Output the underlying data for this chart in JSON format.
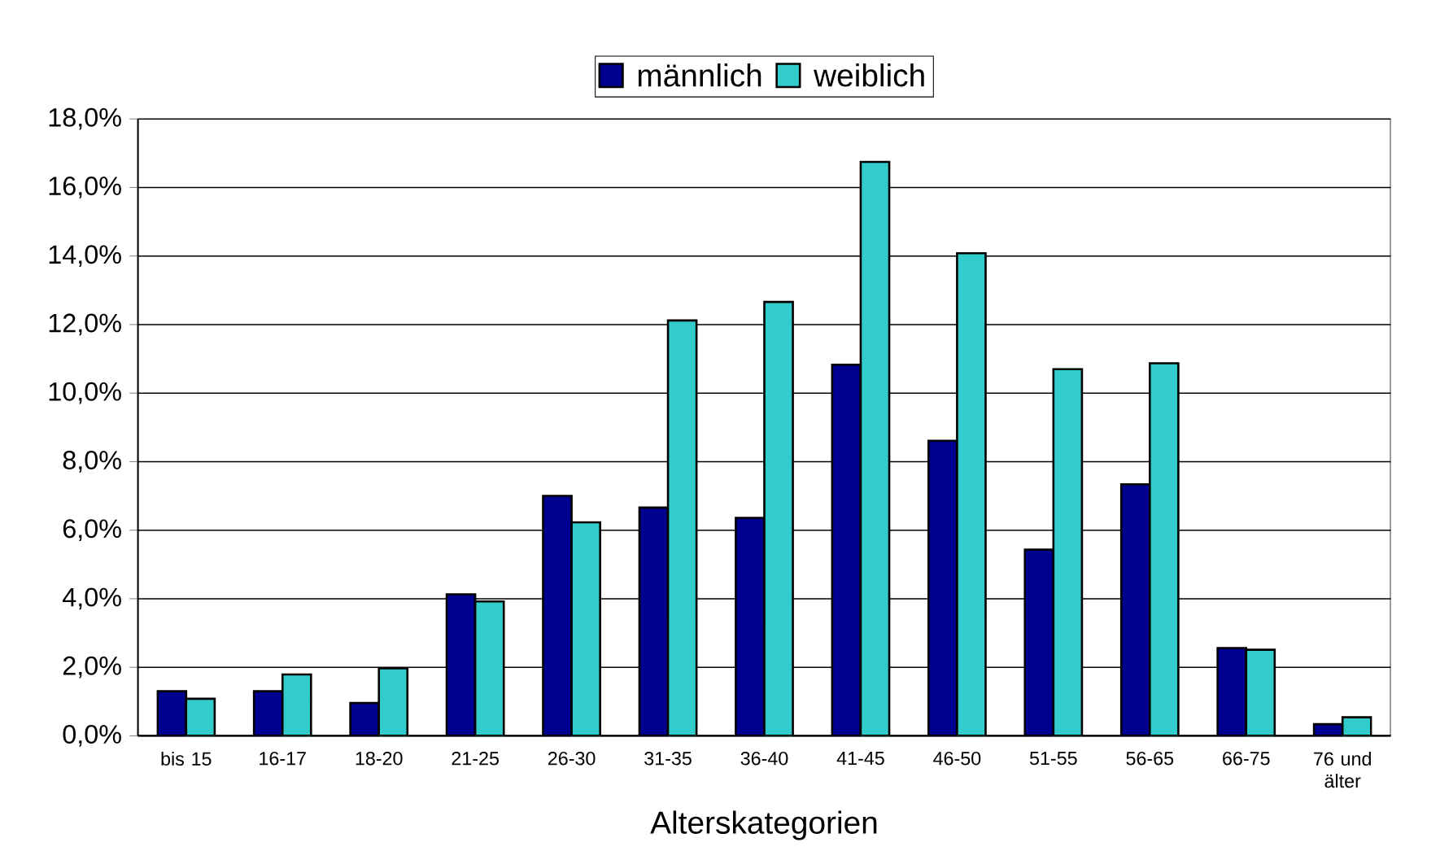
{
  "chart_data": {
    "type": "bar",
    "xlabel": "Alterskategorien",
    "categories": [
      "bis 15",
      "16-17",
      "18-20",
      "21-25",
      "26-30",
      "31-35",
      "36-40",
      "41-45",
      "46-50",
      "51-55",
      "56-65",
      "66-75",
      "76 und älter"
    ],
    "series": [
      {
        "name": "männlich",
        "color": "#000090",
        "values": [
          1.3,
          1.3,
          0.96,
          4.13,
          7.0,
          6.66,
          6.36,
          10.83,
          8.61,
          5.43,
          7.34,
          2.56,
          0.34
        ]
      },
      {
        "name": "weiblich",
        "color": "#33cccc",
        "values": [
          1.08,
          1.79,
          1.97,
          3.92,
          6.23,
          12.12,
          12.66,
          16.75,
          14.08,
          10.7,
          10.87,
          2.51,
          0.54
        ]
      }
    ],
    "ylim": [
      0,
      18
    ],
    "yticks": [
      {
        "value": 0,
        "label": "0,0%"
      },
      {
        "value": 2,
        "label": "2,0%"
      },
      {
        "value": 4,
        "label": "4,0%"
      },
      {
        "value": 6,
        "label": "6,0%"
      },
      {
        "value": 8,
        "label": "8,0%"
      },
      {
        "value": 10,
        "label": "10,0%"
      },
      {
        "value": 12,
        "label": "12,0%"
      },
      {
        "value": 14,
        "label": "14,0%"
      },
      {
        "value": 16,
        "label": "16,0%"
      },
      {
        "value": 18,
        "label": "18,0%"
      }
    ],
    "grid": "y",
    "legend": "top"
  }
}
